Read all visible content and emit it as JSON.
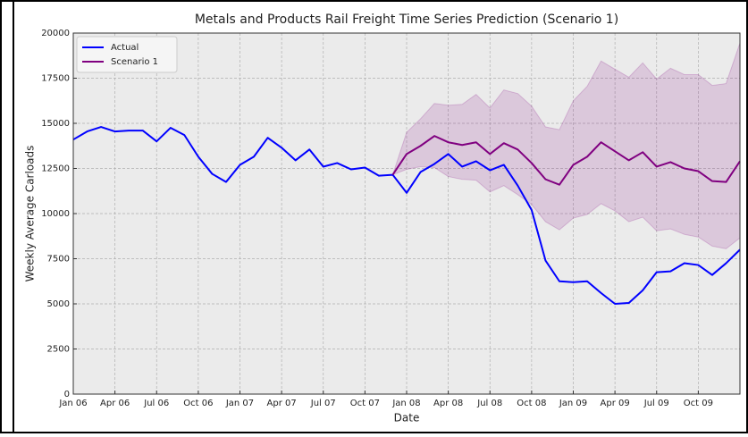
{
  "chart_data": {
    "type": "line",
    "title": "Metals and Products Rail Freight Time Series Prediction (Scenario 1)",
    "xlabel": "Date",
    "ylabel": "Weekly Average Carloads",
    "x": [
      "2006-01",
      "2006-02",
      "2006-03",
      "2006-04",
      "2006-05",
      "2006-06",
      "2006-07",
      "2006-08",
      "2006-09",
      "2006-10",
      "2006-11",
      "2006-12",
      "2007-01",
      "2007-02",
      "2007-03",
      "2007-04",
      "2007-05",
      "2007-06",
      "2007-07",
      "2007-08",
      "2007-09",
      "2007-10",
      "2007-11",
      "2007-12",
      "2008-01",
      "2008-02",
      "2008-03",
      "2008-04",
      "2008-05",
      "2008-06",
      "2008-07",
      "2008-08",
      "2008-09",
      "2008-10",
      "2008-11",
      "2008-12",
      "2009-01",
      "2009-02",
      "2009-03",
      "2009-04",
      "2009-05",
      "2009-06",
      "2009-07",
      "2009-08",
      "2009-09",
      "2009-10",
      "2009-11",
      "2009-12",
      "2010-01"
    ],
    "series": [
      {
        "name": "Actual",
        "color": "#0000ff",
        "values": [
          14100,
          14550,
          14800,
          14550,
          14600,
          14600,
          14000,
          14750,
          14350,
          13150,
          12200,
          11750,
          12700,
          13150,
          14200,
          13650,
          12950,
          13550,
          12600,
          12800,
          12450,
          12550,
          12100,
          12150,
          11150,
          12300,
          12750,
          13300,
          12600,
          12900,
          12400,
          12700,
          11550,
          10200,
          7400,
          6250,
          6200,
          6250,
          5600,
          5000,
          5050,
          5750,
          6750,
          6800,
          7250,
          7150,
          6600,
          7250,
          8000
        ]
      },
      {
        "name": "Scenario 1",
        "color": "#800080",
        "band_color": "#800080",
        "values": [
          null,
          null,
          null,
          null,
          null,
          null,
          null,
          null,
          null,
          null,
          null,
          null,
          null,
          null,
          null,
          null,
          null,
          null,
          null,
          null,
          null,
          null,
          null,
          12150,
          13300,
          13750,
          14300,
          13950,
          13800,
          13950,
          13300,
          13900,
          13550,
          12800,
          11900,
          11600,
          12700,
          13150,
          13950,
          13450,
          12950,
          13400,
          12600,
          12850,
          12500,
          12350,
          11800,
          11750,
          12900
        ],
        "upper": [
          null,
          null,
          null,
          null,
          null,
          null,
          null,
          null,
          null,
          null,
          null,
          null,
          null,
          null,
          null,
          null,
          null,
          null,
          null,
          null,
          null,
          null,
          null,
          12150,
          14500,
          15250,
          16100,
          16000,
          16050,
          16600,
          15850,
          16850,
          16650,
          15950,
          14800,
          14650,
          16250,
          17050,
          18450,
          18000,
          17550,
          18350,
          17450,
          18050,
          17700,
          17700,
          17100,
          17200,
          19450
        ],
        "lower": [
          null,
          null,
          null,
          null,
          null,
          null,
          null,
          null,
          null,
          null,
          null,
          null,
          null,
          null,
          null,
          null,
          null,
          null,
          null,
          null,
          null,
          null,
          null,
          12150,
          12450,
          12600,
          12550,
          12050,
          11900,
          11850,
          11200,
          11550,
          11050,
          10500,
          9550,
          9100,
          9750,
          9950,
          10550,
          10150,
          9550,
          9800,
          9050,
          9150,
          8850,
          8700,
          8200,
          8050,
          8650
        ]
      }
    ],
    "xlim": [
      "2006-01",
      "2010-01"
    ],
    "xticks": [
      {
        "value": "2006-01",
        "label": "Jan 06"
      },
      {
        "value": "2006-04",
        "label": "Apr 06"
      },
      {
        "value": "2006-07",
        "label": "Jul 06"
      },
      {
        "value": "2006-10",
        "label": "Oct 06"
      },
      {
        "value": "2007-01",
        "label": "Jan 07"
      },
      {
        "value": "2007-04",
        "label": "Apr 07"
      },
      {
        "value": "2007-07",
        "label": "Jul 07"
      },
      {
        "value": "2007-10",
        "label": "Oct 07"
      },
      {
        "value": "2008-01",
        "label": "Jan 08"
      },
      {
        "value": "2008-04",
        "label": "Apr 08"
      },
      {
        "value": "2008-07",
        "label": "Jul 08"
      },
      {
        "value": "2008-10",
        "label": "Oct 08"
      },
      {
        "value": "2009-01",
        "label": "Jan 09"
      },
      {
        "value": "2009-04",
        "label": "Apr 09"
      },
      {
        "value": "2009-07",
        "label": "Jul 09"
      },
      {
        "value": "2009-10",
        "label": "Oct 09"
      }
    ],
    "ylim": [
      0,
      20000
    ],
    "yticks": [
      0,
      2500,
      5000,
      7500,
      10000,
      12500,
      15000,
      17500,
      20000
    ],
    "grid": true,
    "legend": "upper left"
  }
}
